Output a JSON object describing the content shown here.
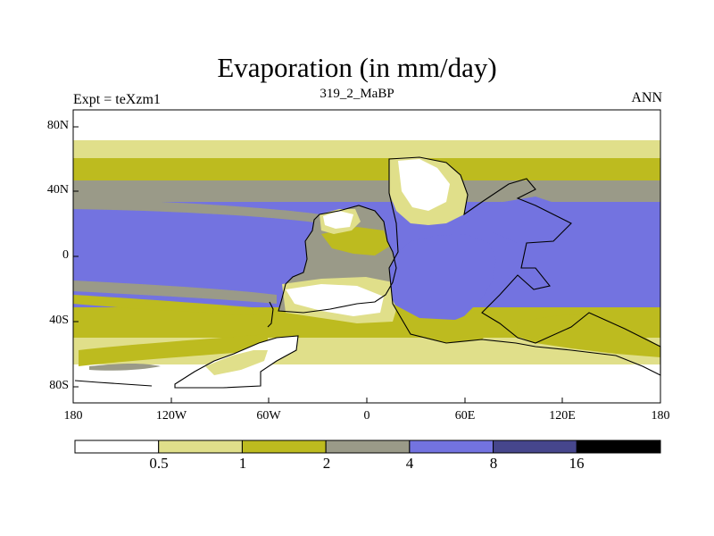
{
  "figure": {
    "title": "Evaporation (in mm/day)",
    "left_label": "Expt = teXzm1",
    "center_label": "319_2_MaBP",
    "right_label": "ANN"
  },
  "axes": {
    "y_ticks": [
      "80N",
      "40N",
      "0",
      "40S",
      "80S"
    ],
    "x_ticks": [
      "180",
      "120W",
      "60W",
      "0",
      "60E",
      "120E",
      "180"
    ]
  },
  "colorbar": {
    "labels": [
      "0.5",
      "1",
      "2",
      "4",
      "8",
      "16"
    ],
    "colors": [
      "#ffffff",
      "#e0df8a",
      "#bdbb1f",
      "#9a9a88",
      "#7373e0",
      "#46468c",
      "#000000"
    ]
  },
  "map_colors": {
    "white": "#ffffff",
    "light": "#e0df8a",
    "olive": "#bdbb1f",
    "gray": "#9a9a88",
    "blue": "#7373e0",
    "outline": "#000000"
  }
}
